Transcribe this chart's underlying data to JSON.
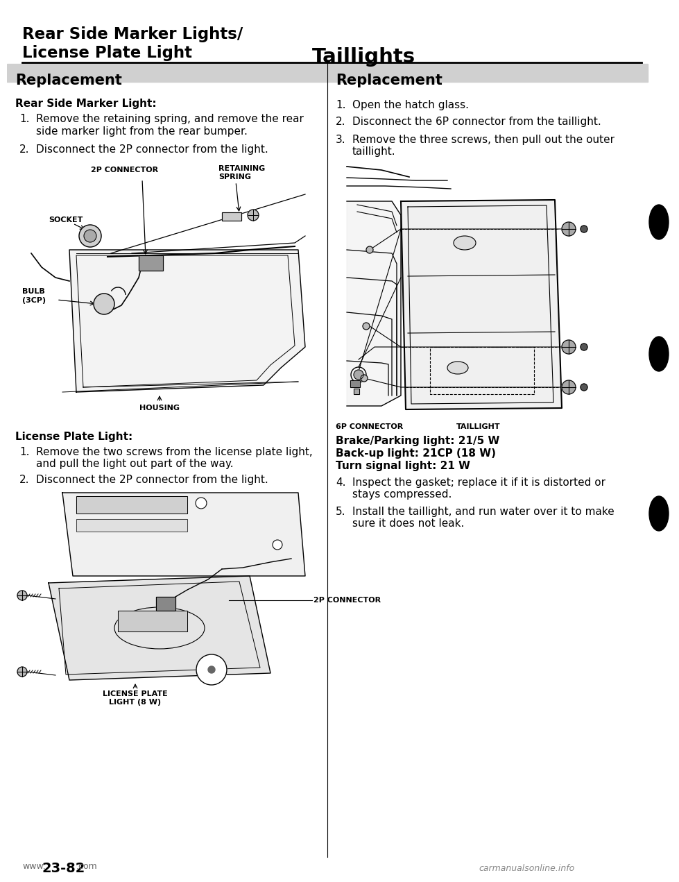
{
  "page_title_left_line1": "Rear Side Marker Lights/",
  "page_title_left_line2": "License Plate Light",
  "page_title_right": "Taillights",
  "bg_color": "#ffffff",
  "left_section_title": "Replacement",
  "right_section_title": "Replacement",
  "left_subsection1": "Rear Side Marker Light:",
  "left_step1a": "Remove the retaining spring, and remove the rear",
  "left_step1b": "side marker light from the rear bumper.",
  "left_step2": "Disconnect the 2P connector from the light.",
  "left_subsection2": "License Plate Light:",
  "left_step3a": "Remove the two screws from the license plate light,",
  "left_step3b": "and pull the light out part of the way.",
  "left_step4": "Disconnect the 2P connector from the light.",
  "right_step1": "Open the hatch glass.",
  "right_step2": "Disconnect the 6P connector from the taillight.",
  "right_step3a": "Remove the three screws, then pull out the outer",
  "right_step3b": "taillight.",
  "right_step4a": "Inspect the gasket; replace it if it is distorted or",
  "right_step4b": "stays compressed.",
  "right_step5a": "Install the taillight, and run water over it to make",
  "right_step5b": "sure it does not leak.",
  "right_bold1": "Brake/Parking light: 21/5 W",
  "right_bold2": "Back-up light: 21CP (18 W)",
  "right_bold3": "Turn signal light: 21 W",
  "diag1_label1": "2P CONNECTOR",
  "diag1_label2": "RETAINING",
  "diag1_label2b": "SPRING",
  "diag1_label3": "SOCKET",
  "diag1_label4": "BULB",
  "diag1_label4b": "(3CP)",
  "diag1_label5": "HOUSING",
  "diag2_label1": "6P CONNECTOR",
  "diag2_label2": "TAILLIGHT",
  "diag3_label1": "2P CONNECTOR",
  "diag3_label2": "LICENSE PLATE",
  "diag3_label2b": "LIGHT (8 W)",
  "footer_www": "www.",
  "footer_num": "23-82",
  "footer_com": ".com",
  "footer_right": "carmanualsonline.info"
}
